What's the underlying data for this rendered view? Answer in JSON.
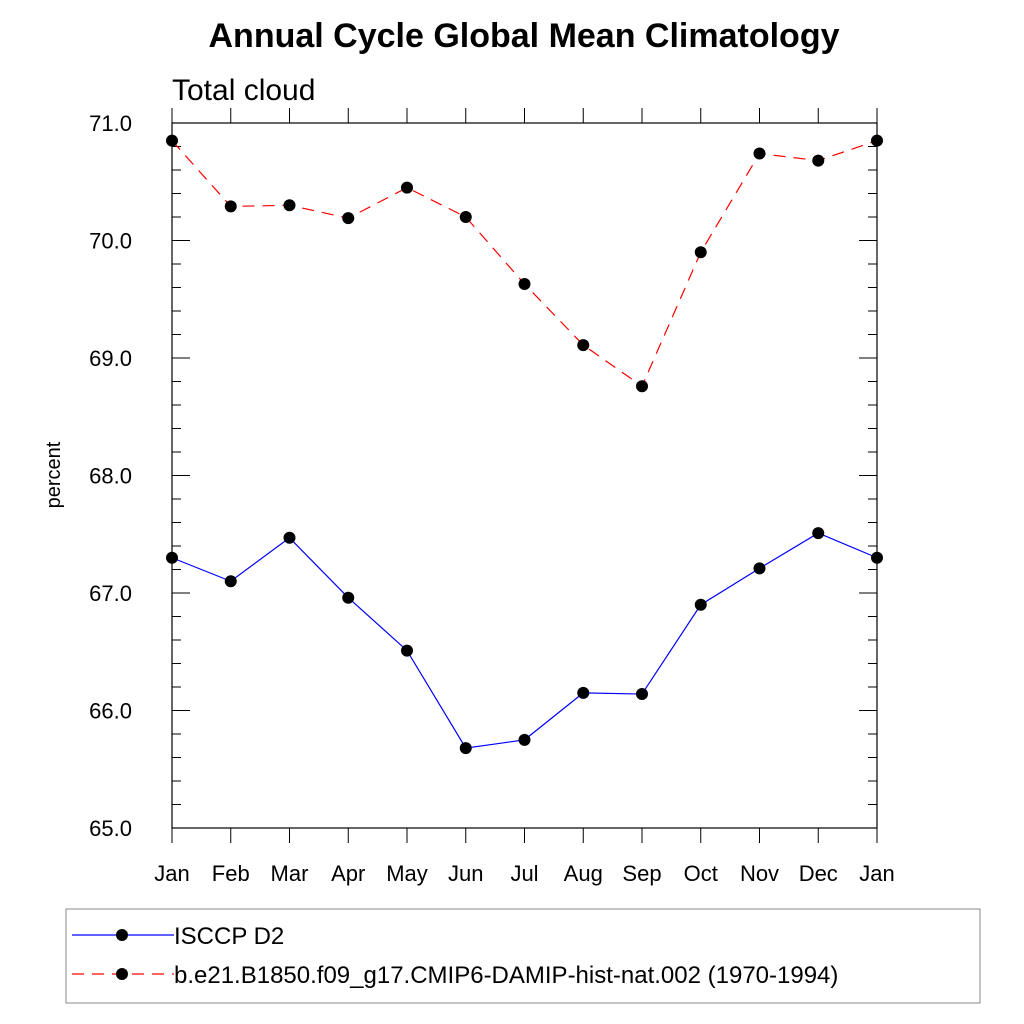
{
  "chart_data": {
    "type": "line",
    "title": "Annual Cycle Global Mean Climatology",
    "subtitle": "Total cloud",
    "xlabel": "",
    "ylabel": "percent",
    "categories": [
      "Jan",
      "Feb",
      "Mar",
      "Apr",
      "May",
      "Jun",
      "Jul",
      "Aug",
      "Sep",
      "Oct",
      "Nov",
      "Dec",
      "Jan"
    ],
    "ylim": [
      65.0,
      71.0
    ],
    "yticks": [
      "65.0",
      "66.0",
      "67.0",
      "68.0",
      "69.0",
      "70.0",
      "71.0"
    ],
    "series": [
      {
        "name": "ISCCP D2",
        "color": "#0000ff",
        "dash": "solid",
        "marker": "filled-circle",
        "values": [
          67.3,
          67.1,
          67.47,
          66.96,
          66.51,
          65.68,
          65.75,
          66.15,
          66.14,
          66.9,
          67.21,
          67.51,
          67.3
        ]
      },
      {
        "name": "b.e21.B1850.f09_g17.CMIP6-DAMIP-hist-nat.002 (1970-1994)",
        "color": "#ff0000",
        "dash": "dashed",
        "marker": "filled-circle",
        "values": [
          70.85,
          70.29,
          70.3,
          70.19,
          70.45,
          70.2,
          69.63,
          69.11,
          68.76,
          69.9,
          70.74,
          70.68,
          70.85
        ]
      }
    ],
    "legend_position": "bottom",
    "grid": false
  }
}
